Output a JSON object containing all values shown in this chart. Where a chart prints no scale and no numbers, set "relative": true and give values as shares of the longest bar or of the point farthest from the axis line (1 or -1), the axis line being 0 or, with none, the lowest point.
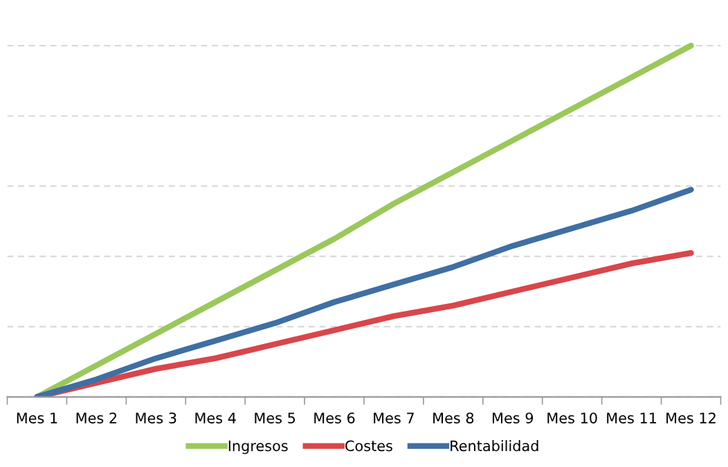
{
  "chart_data": {
    "type": "line",
    "relative": true,
    "grid": "y",
    "legend": "bottom",
    "marker": "none",
    "line_style": "solid",
    "categories": [
      "Mes 1",
      "Mes 2",
      "Mes 3",
      "Mes 4",
      "Mes 5",
      "Mes 6",
      "Mes 7",
      "Mes 8",
      "Mes 9",
      "Mes 10",
      "Mes 11",
      "Mes 12"
    ],
    "series": [
      {
        "name": "Ingresos",
        "color": "#9bc85b",
        "values": [
          0,
          0.09,
          0.18,
          0.27,
          0.36,
          0.45,
          0.55,
          0.64,
          0.73,
          0.82,
          0.91,
          1
        ]
      },
      {
        "name": "Costes",
        "color": "#d9464a",
        "values": [
          0,
          0.04,
          0.08,
          0.11,
          0.15,
          0.19,
          0.23,
          0.26,
          0.3,
          0.34,
          0.38,
          0.41
        ]
      },
      {
        "name": "Rentabilidad",
        "color": "#3f6fa3",
        "values": [
          0,
          0.05,
          0.11,
          0.16,
          0.21,
          0.27,
          0.32,
          0.37,
          0.43,
          0.48,
          0.53,
          0.59
        ]
      }
    ]
  }
}
